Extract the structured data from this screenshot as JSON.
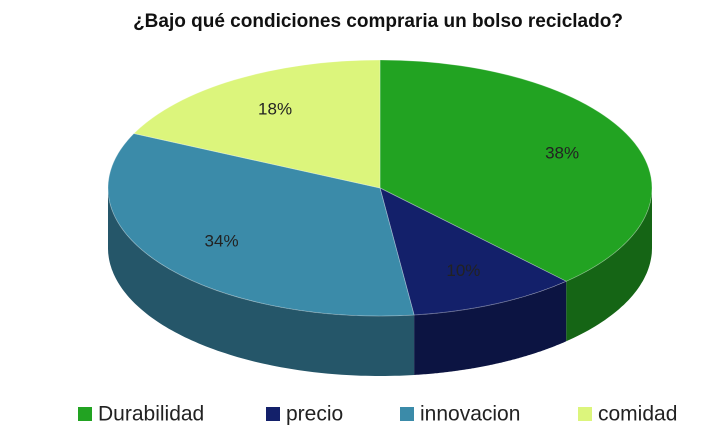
{
  "chart_data": {
    "type": "pie3d",
    "title": "¿Bajo qué condiciones compraria un bolso reciclado?",
    "categories": [
      "Durabilidad",
      "precio",
      "innovacion",
      "comidad"
    ],
    "values": [
      38,
      10,
      34,
      18
    ],
    "value_labels": [
      "38%",
      "10%",
      "34%",
      "18%"
    ],
    "colors": [
      "#22a322",
      "#13206a",
      "#3b8ba9",
      "#dcf57c"
    ],
    "legend": "bottom"
  }
}
